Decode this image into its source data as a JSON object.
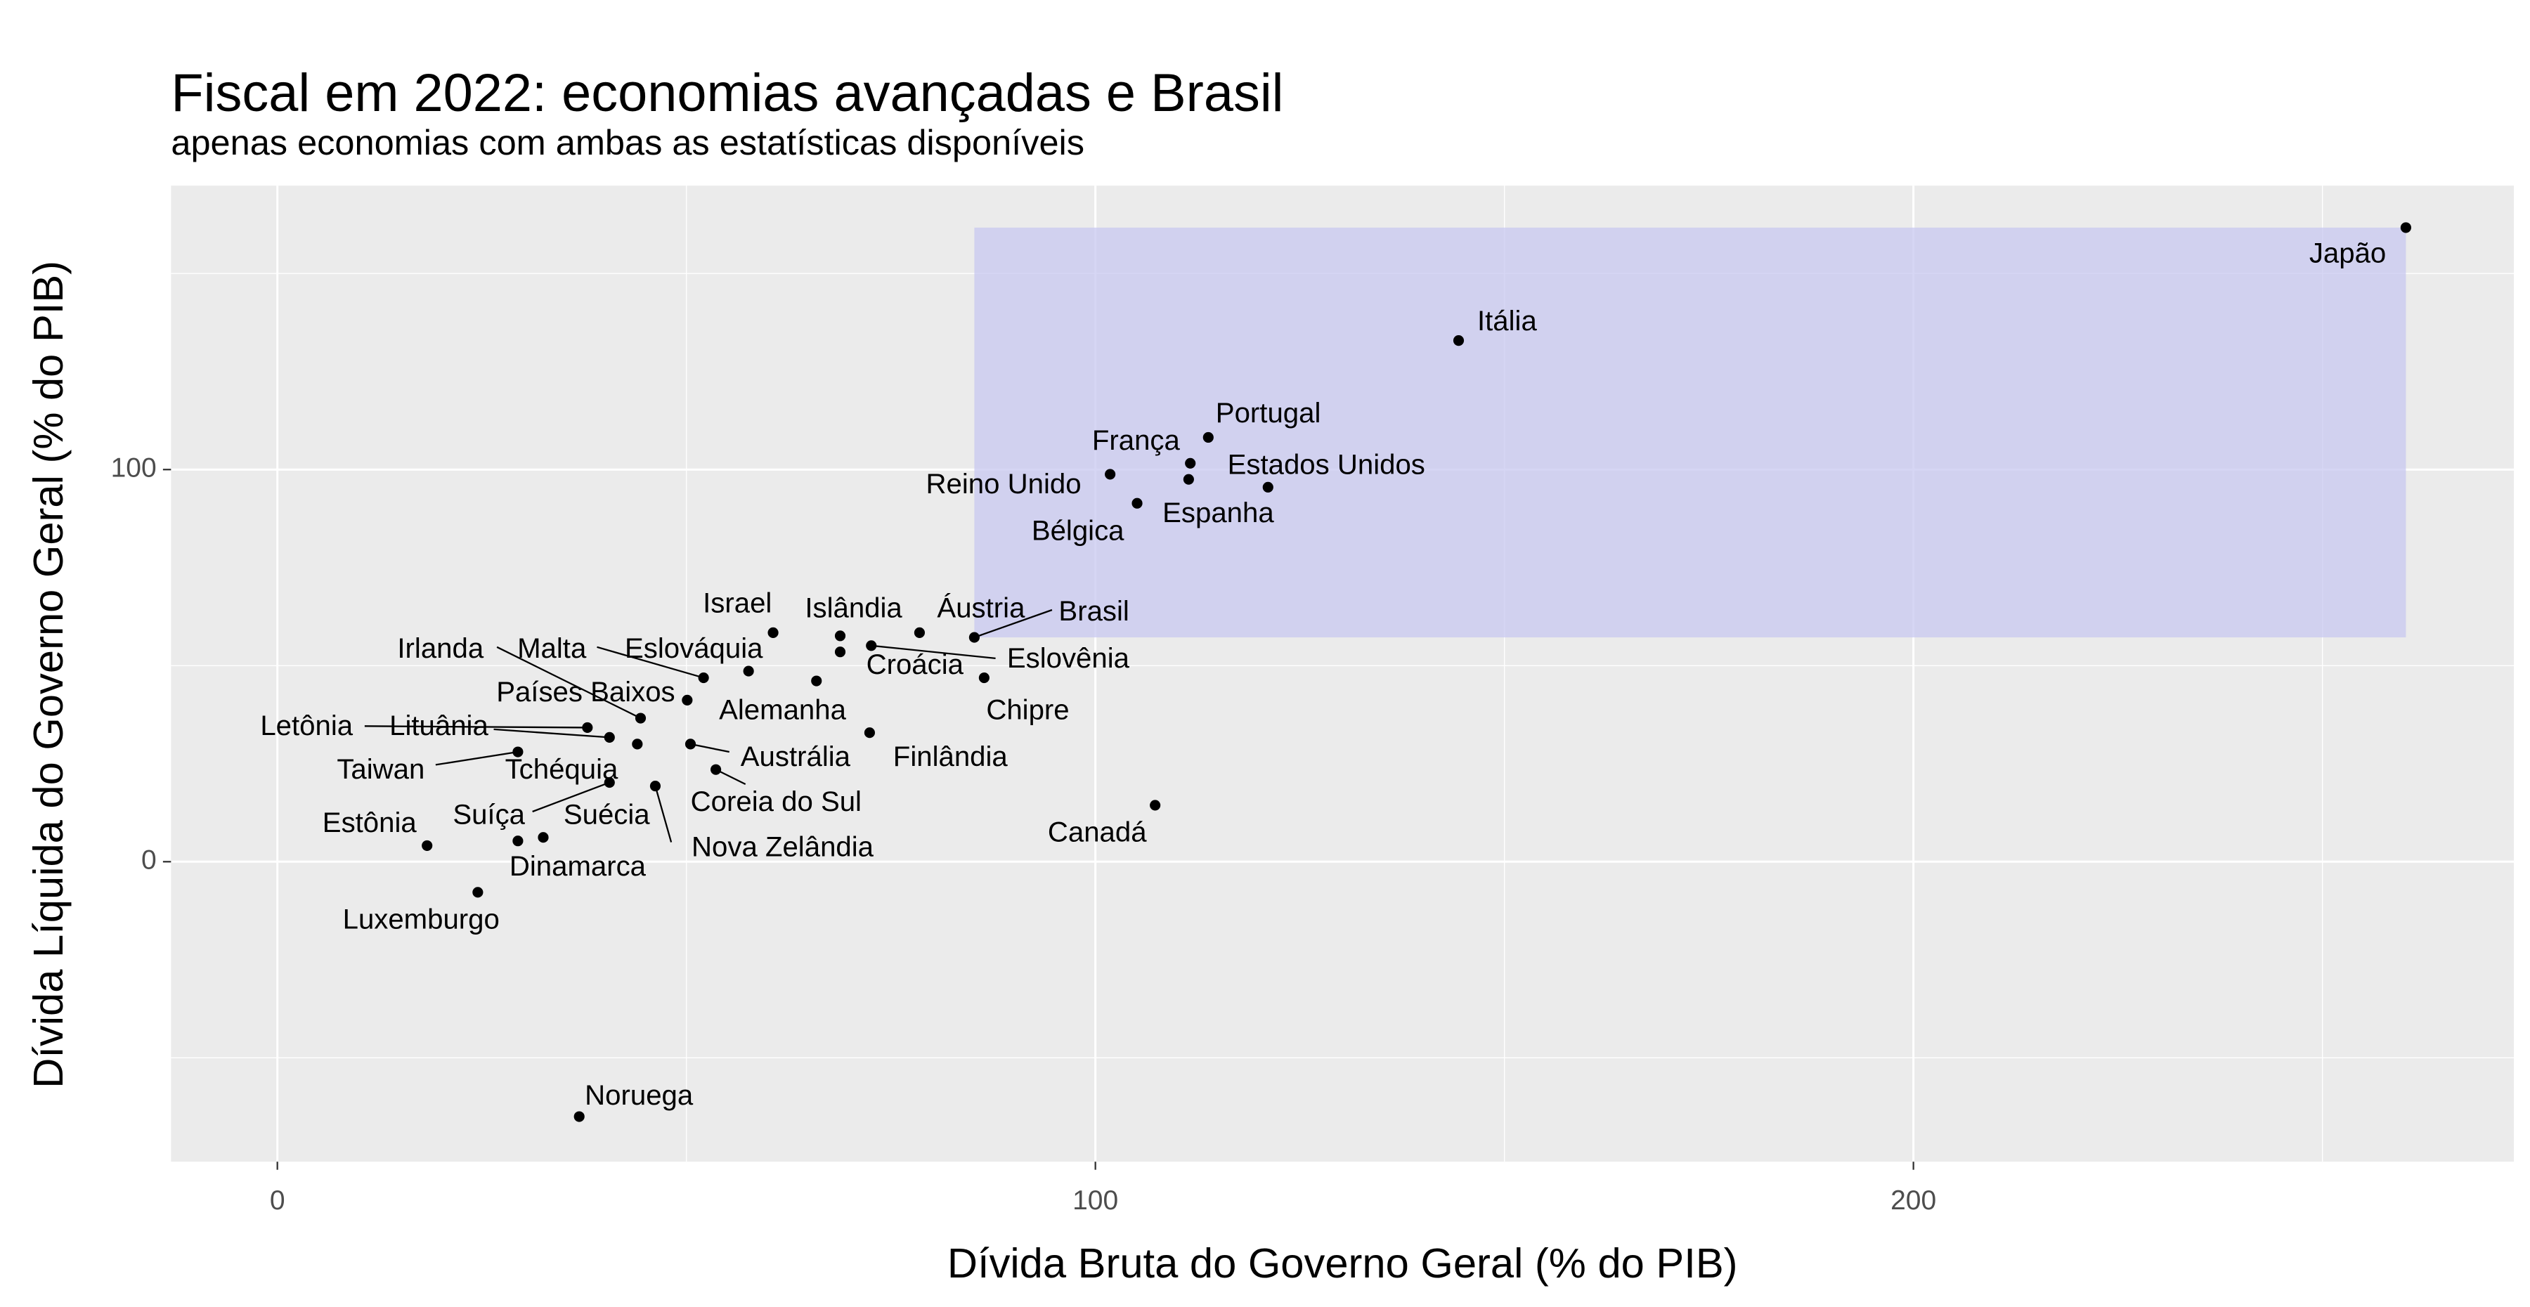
{
  "chart_data": {
    "type": "scatter",
    "title": "Fiscal em 2022: economias avançadas e Brasil",
    "subtitle": "apenas economias com ambas as estatísticas disponíveis",
    "x_label": "Dívida Bruta do Governo Geral (% do PIB)",
    "y_label": "Dívida Líquida do Governo Geral (% do PIB)",
    "xlim": [
      -13,
      273.4
    ],
    "ylim": [
      -76.5,
      172.4
    ],
    "xticks": [
      0,
      100,
      200
    ],
    "yticks": [
      0,
      100
    ],
    "grid": true,
    "color": "#000000",
    "highlight_color": "#c8c8f0",
    "labels": [
      "Brasil",
      "Japão",
      "Itália",
      "Portugal",
      "França",
      "Estados Unidos",
      "Reino Unido",
      "Espanha",
      "Bélgica",
      "Áustria",
      "Islândia",
      "Israel",
      "Eslovênia",
      "Croácia",
      "Chipre",
      "Malta",
      "Eslováquia",
      "Alemanha",
      "Países Baixos",
      "Irlanda",
      "Letônia",
      "Lituânia",
      "Tchéquia",
      "Taiwan",
      "Austrália",
      "Finlândia",
      "Coreia do Sul",
      "Nova Zelândia",
      "Suíça",
      "Suécia",
      "Dinamarca",
      "Estônia",
      "Canadá",
      "Luxemburgo",
      "Noruega"
    ],
    "x": [
      85.2,
      260.2,
      144.4,
      113.8,
      111.6,
      121.1,
      101.8,
      111.4,
      105.1,
      78.5,
      68.8,
      60.6,
      72.6,
      68.8,
      86.4,
      52.1,
      57.6,
      65.9,
      50.1,
      44.4,
      37.9,
      40.6,
      44.0,
      29.4,
      50.5,
      72.4,
      53.6,
      46.2,
      40.6,
      32.5,
      29.4,
      18.3,
      107.3,
      24.5,
      36.9
    ],
    "values": [
      57.2,
      161.7,
      132.9,
      108.2,
      101.6,
      95.5,
      98.8,
      97.5,
      91.4,
      58.4,
      57.6,
      58.4,
      55.1,
      53.5,
      46.9,
      46.9,
      48.6,
      46.1,
      41.2,
      36.6,
      34.2,
      31.7,
      30.0,
      28.0,
      30.0,
      32.9,
      23.5,
      19.3,
      20.2,
      6.2,
      5.3,
      4.1,
      14.4,
      -7.8,
      -65.0
    ]
  }
}
